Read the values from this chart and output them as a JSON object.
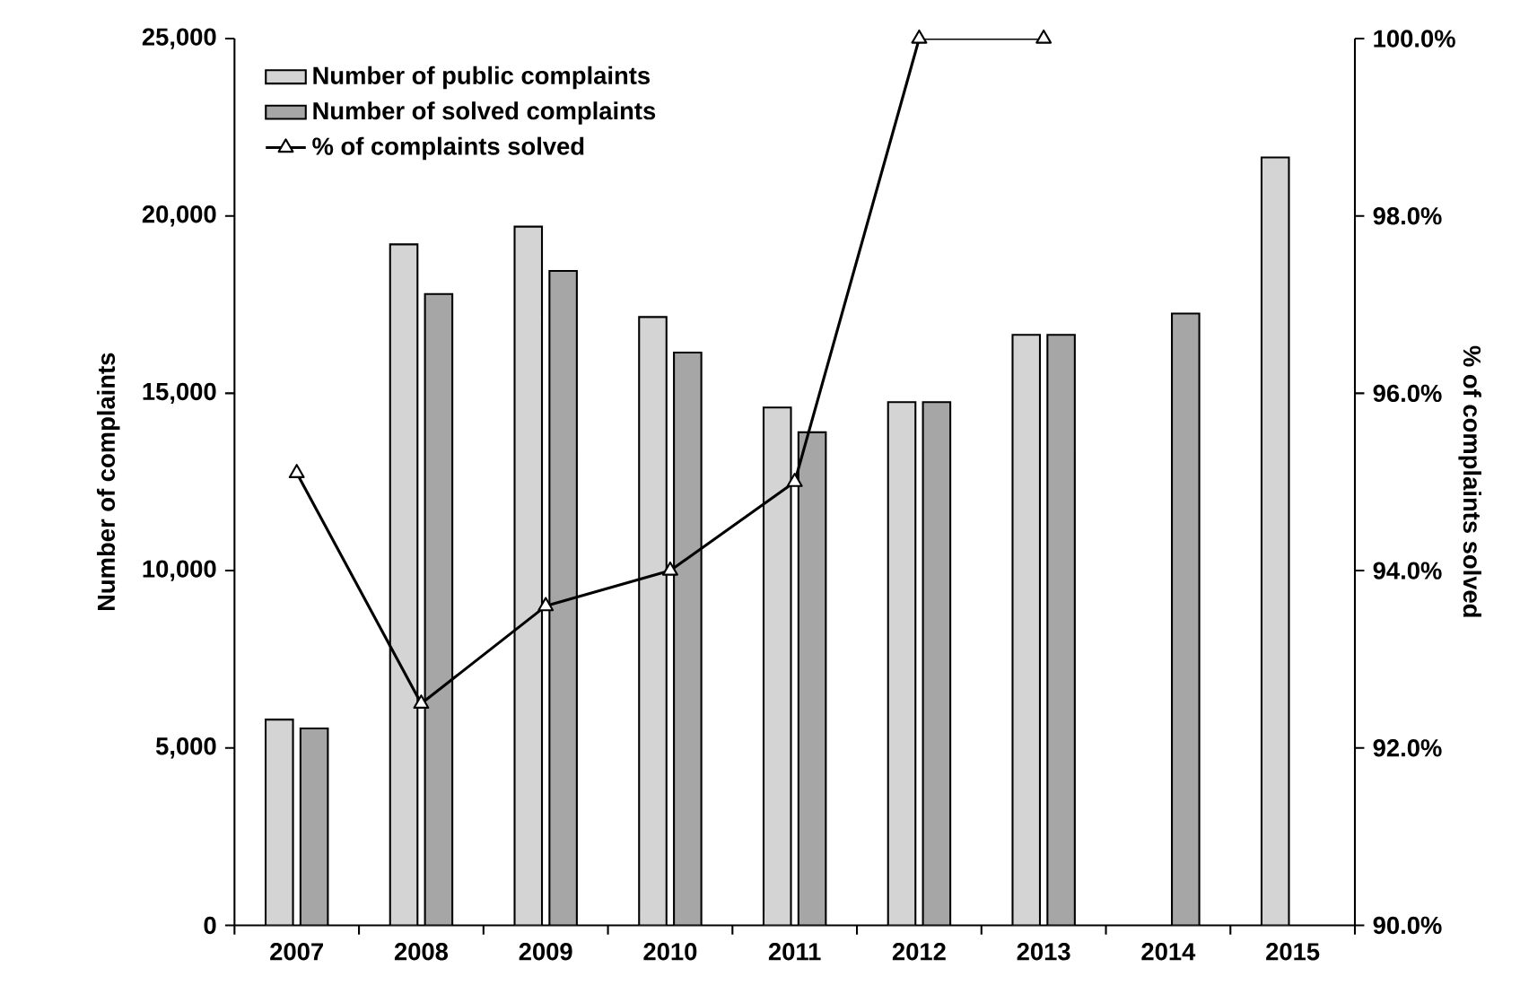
{
  "chart_data": {
    "type": "bar",
    "categories": [
      "2007",
      "2008",
      "2009",
      "2010",
      "2011",
      "2012",
      "2013",
      "2014",
      "2015"
    ],
    "ylabel": "Number of complaints",
    "y2label": "% of complaints solved",
    "ylim": [
      0,
      25000
    ],
    "yticks": [
      {
        "value": 0,
        "label": "0"
      },
      {
        "value": 5000,
        "label": "5,000"
      },
      {
        "value": 10000,
        "label": "10,000"
      },
      {
        "value": 15000,
        "label": "15,000"
      },
      {
        "value": 20000,
        "label": "20,000"
      },
      {
        "value": 25000,
        "label": "25,000"
      }
    ],
    "y2lim": [
      90,
      100
    ],
    "y2ticks": [
      {
        "value": 90,
        "label": "90.0%"
      },
      {
        "value": 92,
        "label": "92.0%"
      },
      {
        "value": 94,
        "label": "94.0%"
      },
      {
        "value": 96,
        "label": "96.0%"
      },
      {
        "value": 98,
        "label": "98.0%"
      },
      {
        "value": 100,
        "label": "100.0%"
      }
    ],
    "legend": "top left",
    "grid": false,
    "series": [
      {
        "name": "Number of public complaints",
        "color": "#d4d4d4",
        "values": [
          5800,
          19200,
          19700,
          17150,
          14600,
          14750,
          16650,
          null,
          21650
        ]
      },
      {
        "name": "Number of solved complaints",
        "color": "#a6a6a6",
        "values": [
          5550,
          17800,
          18450,
          16150,
          13900,
          14750,
          16650,
          17250,
          null
        ]
      },
      {
        "name": "% of complaints solved",
        "type": "line",
        "axis": "y2",
        "color": "#000000",
        "marker": "triangle",
        "line_style": "solid",
        "values": [
          95.1,
          92.5,
          93.6,
          94.0,
          95.0,
          100,
          100,
          null,
          null
        ]
      }
    ]
  }
}
